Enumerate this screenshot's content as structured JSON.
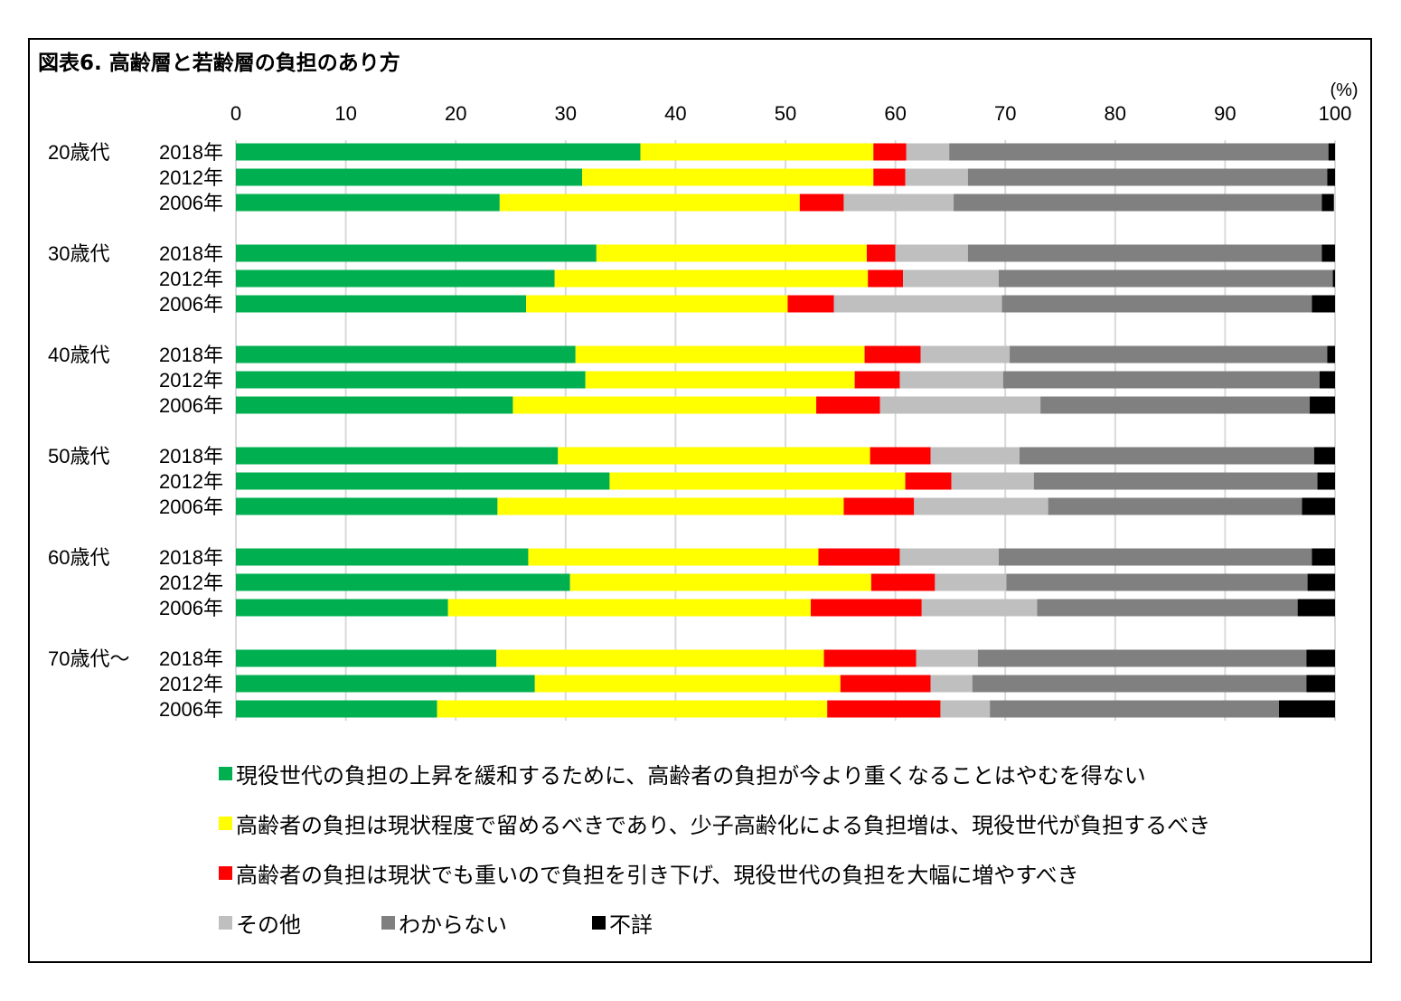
{
  "chart_data": {
    "type": "bar",
    "orientation": "horizontal",
    "stacked": true,
    "title": "図表6.  高齢層と若齢層の負担のあり方",
    "unit_label": "(%)",
    "xlim": [
      0,
      100
    ],
    "xticks": [
      0,
      10,
      20,
      30,
      40,
      50,
      60,
      70,
      80,
      90,
      100
    ],
    "grid": true,
    "legend_position": "bottom",
    "groups": [
      {
        "label": "20歳代",
        "rows": [
          "2018年",
          "2012年",
          "2006年"
        ]
      },
      {
        "label": "30歳代",
        "rows": [
          "2018年",
          "2012年",
          "2006年"
        ]
      },
      {
        "label": "40歳代",
        "rows": [
          "2018年",
          "2012年",
          "2006年"
        ]
      },
      {
        "label": "50歳代",
        "rows": [
          "2018年",
          "2012年",
          "2006年"
        ]
      },
      {
        "label": "60歳代",
        "rows": [
          "2018年",
          "2012年",
          "2006年"
        ]
      },
      {
        "label": "70歳代～",
        "rows": [
          "2018年",
          "2012年",
          "2006年"
        ]
      }
    ],
    "series": [
      {
        "name": "現役世代の負担の上昇を緩和するために、高齢者の負担が今より重くなることはやむを得ない",
        "color": "#00b050",
        "values": [
          36.8,
          31.5,
          24.0,
          32.8,
          29.0,
          26.4,
          30.9,
          31.8,
          25.2,
          29.3,
          34.0,
          23.8,
          26.6,
          30.4,
          19.3,
          23.7,
          27.2,
          18.3
        ]
      },
      {
        "name": "高齢者の負担は現状程度で留めるべきであり、少子高齢化による負担増は、現役世代が負担するべき",
        "color": "#ffff00",
        "values": [
          21.2,
          26.5,
          27.3,
          24.6,
          28.5,
          23.8,
          26.3,
          24.5,
          27.6,
          28.4,
          26.9,
          31.5,
          26.4,
          27.4,
          33.0,
          29.8,
          27.8,
          35.5
        ]
      },
      {
        "name": "高齢者の負担は現状でも重いので負担を引き下げ、現役世代の負担を大幅に増やすべき",
        "color": "#ff0000",
        "values": [
          3.0,
          2.9,
          4.0,
          2.6,
          3.2,
          4.2,
          5.1,
          4.1,
          5.8,
          5.5,
          4.2,
          6.4,
          7.4,
          5.8,
          10.1,
          8.4,
          8.2,
          10.3
        ]
      },
      {
        "name": "その他",
        "color": "#bfbfbf",
        "values": [
          3.9,
          5.7,
          10.0,
          6.6,
          8.7,
          15.3,
          8.1,
          9.4,
          14.6,
          8.1,
          7.5,
          12.2,
          9.0,
          6.5,
          10.5,
          5.6,
          3.8,
          4.5
        ]
      },
      {
        "name": "わからない",
        "color": "#808080",
        "values": [
          34.5,
          32.7,
          33.5,
          32.2,
          30.4,
          28.2,
          28.9,
          28.8,
          24.5,
          26.8,
          25.8,
          23.1,
          28.5,
          27.4,
          23.7,
          29.9,
          30.4,
          26.3
        ]
      },
      {
        "name": "不詳",
        "color": "#000000",
        "values": [
          0.6,
          0.7,
          1.1,
          1.2,
          0.2,
          2.1,
          0.7,
          1.4,
          2.3,
          1.9,
          1.6,
          3.0,
          2.1,
          2.5,
          3.4,
          2.6,
          2.6,
          5.1
        ]
      }
    ]
  }
}
